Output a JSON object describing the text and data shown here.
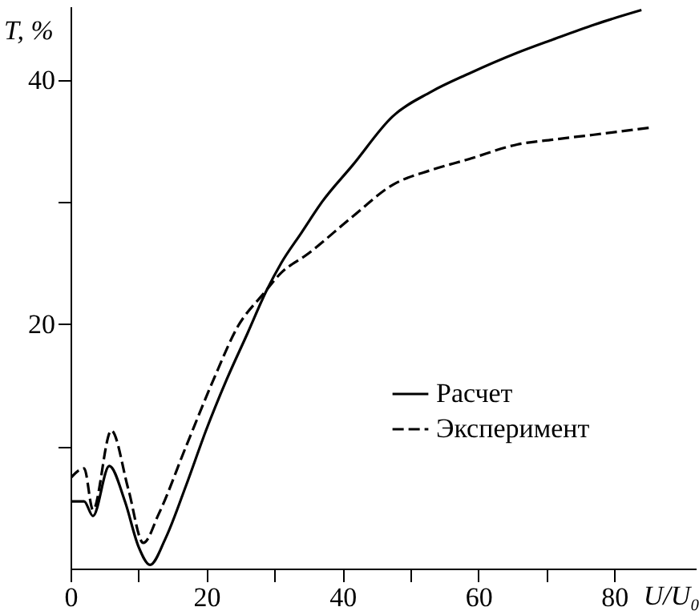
{
  "chart_data": {
    "type": "line",
    "xlabel": "U/U₀",
    "ylabel": "T, %",
    "xlim": [
      0,
      92
    ],
    "ylim": [
      0,
      46
    ],
    "xticks": [
      0,
      {
        "value": 10,
        "label": null
      },
      20,
      {
        "value": 30,
        "label": null
      },
      40,
      {
        "value": 50,
        "label": null
      },
      60,
      {
        "value": 70,
        "label": null
      },
      80
    ],
    "yticks": [
      {
        "value": 10,
        "label": null
      },
      20,
      {
        "value": 30,
        "label": null
      },
      40
    ],
    "grid": false,
    "legend": "right",
    "marker": "none",
    "series": [
      {
        "name": "Расчет",
        "color": "#000000",
        "line_style": "solid",
        "x": [
          0,
          2,
          3.3,
          5.7,
          8,
          10,
          11.7,
          14,
          17,
          20,
          23,
          26,
          28.8,
          31,
          34,
          37,
          41.5,
          47.4,
          53,
          58.6,
          65.7,
          71,
          77,
          84
        ],
        "values": [
          5.5,
          5.5,
          4.3,
          8.4,
          5.5,
          1.8,
          0.3,
          2.5,
          6.8,
          11.4,
          15.5,
          19.2,
          22.7,
          25,
          27.5,
          30,
          33,
          37,
          39,
          40.5,
          42.2,
          43.3,
          44.5,
          45.7
        ]
      },
      {
        "name": "Эксперимент",
        "color": "#000000",
        "line_style": "dashed",
        "x": [
          0,
          2,
          3.3,
          6,
          8.5,
          10.7,
          13,
          17,
          21.3,
          24.5,
          28.4,
          31,
          34.8,
          41.5,
          47.4,
          53,
          58.6,
          65.7,
          71,
          77,
          85.5
        ],
        "values": [
          7.4,
          8.2,
          4.8,
          11.3,
          6.5,
          2.1,
          4.5,
          10,
          15.8,
          19.7,
          22.5,
          24.2,
          25.7,
          28.8,
          31.4,
          32.6,
          33.5,
          34.7,
          35.1,
          35.5,
          36.1
        ]
      }
    ]
  }
}
